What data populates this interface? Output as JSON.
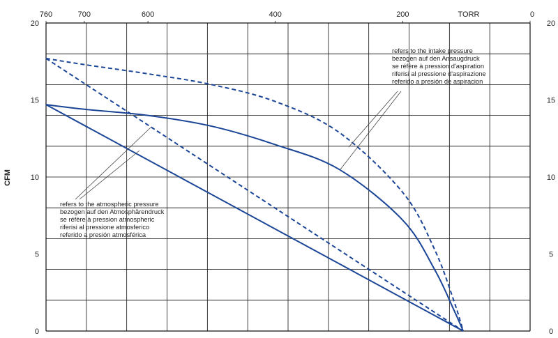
{
  "chart_data": {
    "type": "line",
    "ylabel": "CFM",
    "top_axis_unit": "TORR",
    "ylim": [
      0,
      20
    ],
    "y_ticks": [
      0,
      5,
      10,
      15,
      20
    ],
    "x_top_ticks": [
      {
        "label": "760",
        "value": 760
      },
      {
        "label": "700",
        "value": 700
      },
      {
        "label": "600",
        "value": 600
      },
      {
        "label": "400",
        "value": 400
      },
      {
        "label": "200",
        "value": 200
      },
      {
        "label": "0",
        "value": 0
      }
    ],
    "xlim_torr": [
      760,
      0
    ],
    "grid": true,
    "series": [
      {
        "ref": "intake",
        "style": "dashed",
        "color": "#1b4596",
        "points": [
          [
            760,
            17.7
          ],
          [
            700,
            17.3
          ],
          [
            600,
            16.7
          ],
          [
            500,
            16.0
          ],
          [
            400,
            14.9
          ],
          [
            300,
            12.9
          ],
          [
            200,
            9.0
          ],
          [
            150,
            5.3
          ],
          [
            120,
            2.0
          ],
          [
            105,
            0
          ]
        ]
      },
      {
        "ref": "intake",
        "style": "solid",
        "color": "#1b4596",
        "points": [
          [
            760,
            14.7
          ],
          [
            700,
            14.4
          ],
          [
            600,
            14.0
          ],
          [
            500,
            13.3
          ],
          [
            400,
            12.1
          ],
          [
            300,
            10.5
          ],
          [
            200,
            7.2
          ],
          [
            150,
            4.0
          ],
          [
            120,
            1.4
          ],
          [
            105,
            0
          ]
        ]
      },
      {
        "ref": "atmospheric",
        "style": "dashed",
        "color": "#1b4596",
        "points": [
          [
            760,
            17.7
          ],
          [
            105,
            0
          ]
        ]
      },
      {
        "ref": "atmospheric",
        "style": "solid",
        "color": "#1b4596",
        "points": [
          [
            760,
            14.7
          ],
          [
            105,
            0
          ]
        ]
      }
    ],
    "annotations": {
      "intake": {
        "lines": [
          "refers to the intake pressure",
          "bezogen auf den Ansaugdruck",
          "se réfère à pression d'aspiration",
          "riferisi al pressione d'aspirazione",
          "referido a presión de aspiracion"
        ]
      },
      "atmospheric": {
        "lines": [
          "refers to the atmospheric pressure",
          "bezogen auf den Atmosphärendruck",
          "se réfère à pression atmospheric",
          "riferisi al pressione atmosferico",
          "referido a presión atmosférica"
        ]
      }
    }
  }
}
